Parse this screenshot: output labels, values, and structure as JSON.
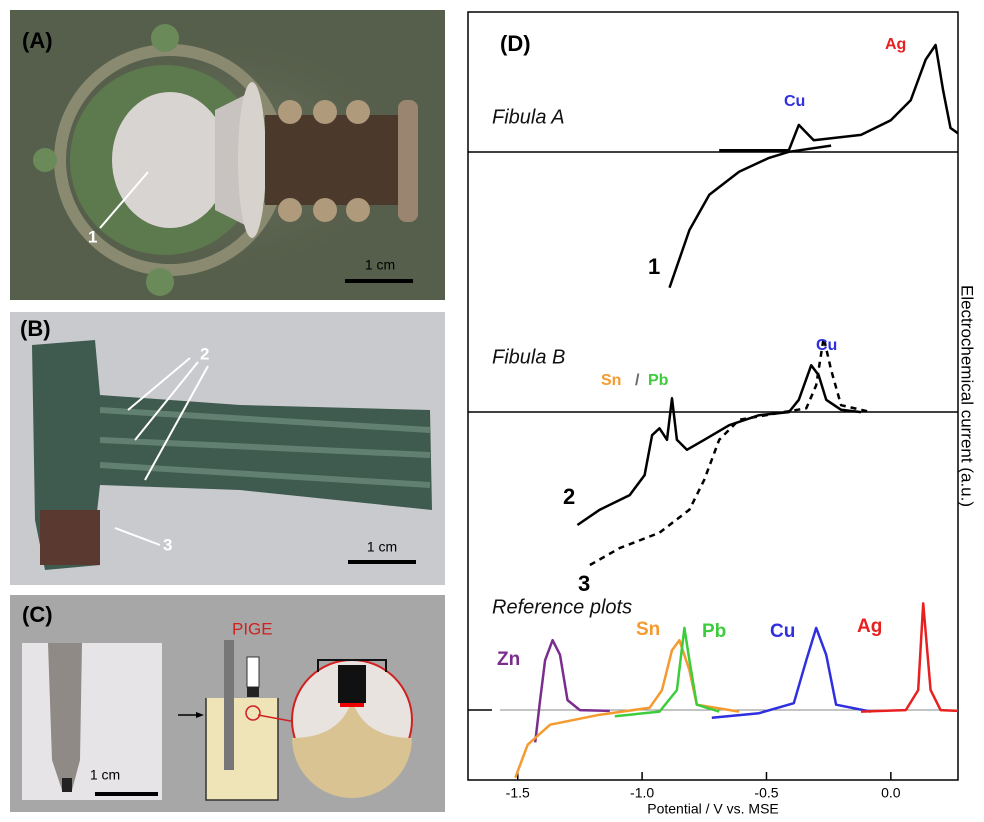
{
  "panels": {
    "A": {
      "label": "(A)",
      "annotations": [
        "1"
      ],
      "scale": "1 cm"
    },
    "B": {
      "label": "(B)",
      "annotations": [
        "2",
        "3"
      ],
      "scale": "1 cm"
    },
    "C": {
      "label": "(C)",
      "scale": "1 cm",
      "title": "PIGE"
    }
  },
  "chart_data": {
    "type": "line",
    "label": "(D)",
    "xlabel": "Potential / V vs. MSE",
    "ylabel": "Electrochemical current (a.u.)",
    "xlim": [
      -1.7,
      0.27
    ],
    "ylim": [
      0,
      100
    ],
    "xticks": [
      -1.5,
      {
        "value": -1,
        "label": "-1.0"
      },
      -0.5,
      {
        "value": 0,
        "label": "0.0"
      }
    ],
    "annotations": [
      {
        "text": "Fibula A",
        "color": "#111111"
      },
      {
        "text": "Cu",
        "color": "#2f2fe0"
      },
      {
        "text": "Ag",
        "color": "#e82020"
      },
      {
        "text": "Fibula B",
        "color": "#111111"
      },
      {
        "text": "Sn",
        "color": "#f59a2e"
      },
      {
        "text": "/",
        "color": "#666666"
      },
      {
        "text": "Pb",
        "color": "#3ccc3c"
      },
      {
        "text": "Cu",
        "color": "#2f2fe0"
      },
      {
        "text": "Reference plots",
        "color": "#111111"
      }
    ],
    "series": [
      {
        "name": "Fibula A",
        "color": "#000000",
        "dash": false,
        "x": [
          -0.69,
          -0.41,
          -0.37,
          -0.31,
          -0.12,
          0.0,
          0.08,
          0.14,
          0.18,
          0.21,
          0.24,
          0.27
        ],
        "y": [
          82.0,
          82.0,
          85.3,
          83.3,
          84.0,
          85.9,
          88.5,
          93.8,
          95.7,
          89.8,
          84.9,
          84.2
        ]
      },
      {
        "name": "1",
        "color": "#000000",
        "dash": false,
        "x": [
          -0.89,
          -0.81,
          -0.73,
          -0.61,
          -0.49,
          -0.41,
          -0.24
        ],
        "y": [
          64.1,
          71.6,
          76.2,
          79.2,
          81.0,
          81.8,
          82.6
        ]
      },
      {
        "name": "2",
        "color": "#000000",
        "dash": false,
        "x": [
          -1.26,
          -1.17,
          -1.05,
          -0.99,
          -0.96,
          -0.93,
          -0.9,
          -0.88,
          -0.86,
          -0.82,
          -0.75,
          -0.65,
          -0.53,
          -0.41,
          -0.37,
          -0.32,
          -0.29,
          -0.26,
          -0.2,
          -0.12
        ],
        "y": [
          33.2,
          35.2,
          37.1,
          39.7,
          44.9,
          45.8,
          44.3,
          49.7,
          44.3,
          43.0,
          44.3,
          46.2,
          47.5,
          47.9,
          49.5,
          54.0,
          52.7,
          49.5,
          48.2,
          47.9
        ]
      },
      {
        "name": "3",
        "color": "#000000",
        "dash": true,
        "x": [
          -1.21,
          -1.09,
          -0.93,
          -0.81,
          -0.75,
          -0.69,
          -0.61,
          -0.45,
          -0.34,
          -0.3,
          -0.27,
          -0.24,
          -0.2,
          -0.08
        ],
        "y": [
          28.0,
          30.2,
          32.2,
          35.2,
          39.1,
          44.3,
          46.9,
          47.8,
          48.4,
          51.4,
          57.6,
          53.4,
          48.8,
          47.9
        ]
      },
      {
        "name": "Zn",
        "color": "#7b2d8e",
        "dash": false,
        "x": [
          -1.43,
          -1.41,
          -1.39,
          -1.36,
          -1.33,
          -1.3,
          -1.25,
          -1.13
        ],
        "y": [
          4.9,
          10.4,
          15.6,
          18.2,
          16.3,
          10.4,
          9.1,
          9.0
        ]
      },
      {
        "name": "Sn",
        "color": "#f59a2e",
        "dash": false,
        "x": [
          -1.51,
          -1.46,
          -1.37,
          -1.17,
          -0.97,
          -0.92,
          -0.88,
          -0.85,
          -0.81,
          -0.78,
          -0.61
        ],
        "y": [
          0.3,
          4.6,
          7.2,
          8.5,
          9.4,
          11.7,
          16.9,
          18.2,
          14.3,
          9.8,
          8.9
        ]
      },
      {
        "name": "Pb",
        "color": "#3ccc3c",
        "dash": false,
        "x": [
          -1.11,
          -0.93,
          -0.86,
          -0.83,
          -0.81,
          -0.78,
          -0.69
        ],
        "y": [
          8.3,
          8.9,
          11.7,
          19.8,
          15.6,
          9.8,
          8.9
        ]
      },
      {
        "name": "Cu",
        "color": "#2f2fe0",
        "dash": false,
        "x": [
          -0.72,
          -0.53,
          -0.39,
          -0.34,
          -0.3,
          -0.26,
          -0.22,
          -0.08
        ],
        "y": [
          8.1,
          8.7,
          10.0,
          15.6,
          19.8,
          16.3,
          9.8,
          8.9
        ]
      },
      {
        "name": "Ag",
        "color": "#e82020",
        "dash": false,
        "x": [
          -0.12,
          0.06,
          0.11,
          0.13,
          0.16,
          0.2,
          0.27
        ],
        "y": [
          8.9,
          9.1,
          11.7,
          23.0,
          11.7,
          9.1,
          9.0
        ]
      }
    ]
  }
}
